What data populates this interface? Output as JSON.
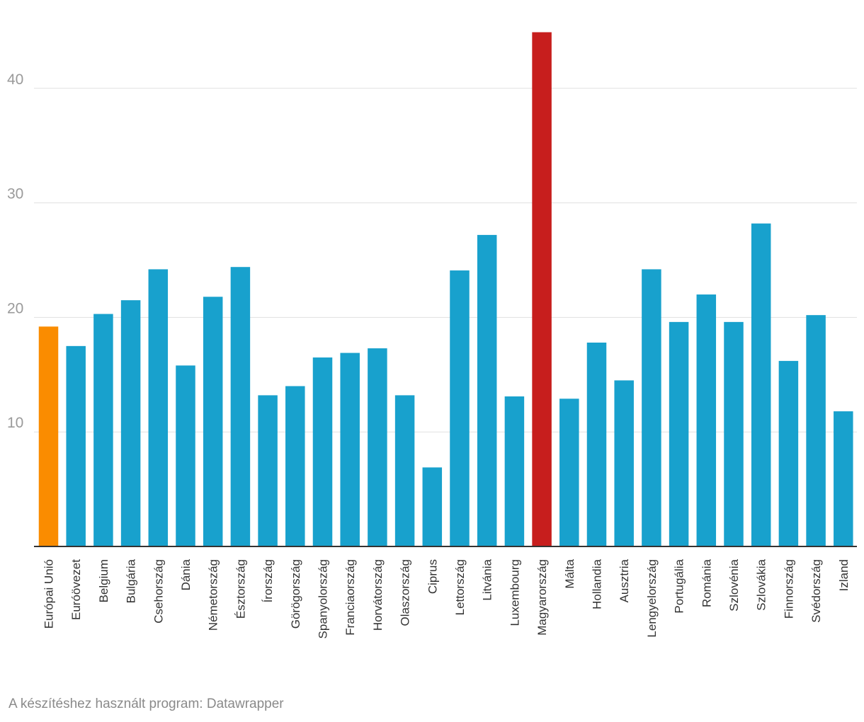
{
  "chart_data": {
    "type": "bar",
    "title": "",
    "xlabel": "",
    "ylabel": "",
    "ylim": [
      0,
      45
    ],
    "y_ticks": [
      10,
      20,
      30,
      40
    ],
    "grid": true,
    "categories": [
      "Európai Unió",
      "Euróövezet",
      "Belgium",
      "Bulgária",
      "Csehország",
      "Dánia",
      "Németország",
      "Észtország",
      "Írország",
      "Görögország",
      "Spanyolország",
      "Franciaország",
      "Horvátország",
      "Olaszország",
      "Ciprus",
      "Lettország",
      "Litvánia",
      "Luxembourg",
      "Magyarország",
      "Málta",
      "Hollandia",
      "Ausztria",
      "Lengyelország",
      "Portugália",
      "Románia",
      "Szlovénia",
      "Szlovákia",
      "Finnország",
      "Svédország",
      "Izland"
    ],
    "values": [
      19.2,
      17.5,
      20.3,
      21.5,
      24.2,
      15.8,
      21.8,
      24.4,
      13.2,
      14.0,
      16.5,
      16.9,
      17.3,
      13.2,
      6.9,
      24.1,
      27.2,
      13.1,
      44.9,
      12.9,
      17.8,
      14.5,
      24.2,
      19.6,
      22.0,
      19.6,
      28.2,
      16.2,
      20.2,
      11.8
    ],
    "colors": {
      "default": "#18a1cd",
      "highlight_eu": "#fa8c00",
      "highlight_hu": "#c71e1d"
    },
    "highlights": {
      "Európai Unió": "highlight_eu",
      "Magyarország": "highlight_hu"
    }
  },
  "footer": {
    "credit": "A készítéshez használt program: Datawrapper"
  }
}
